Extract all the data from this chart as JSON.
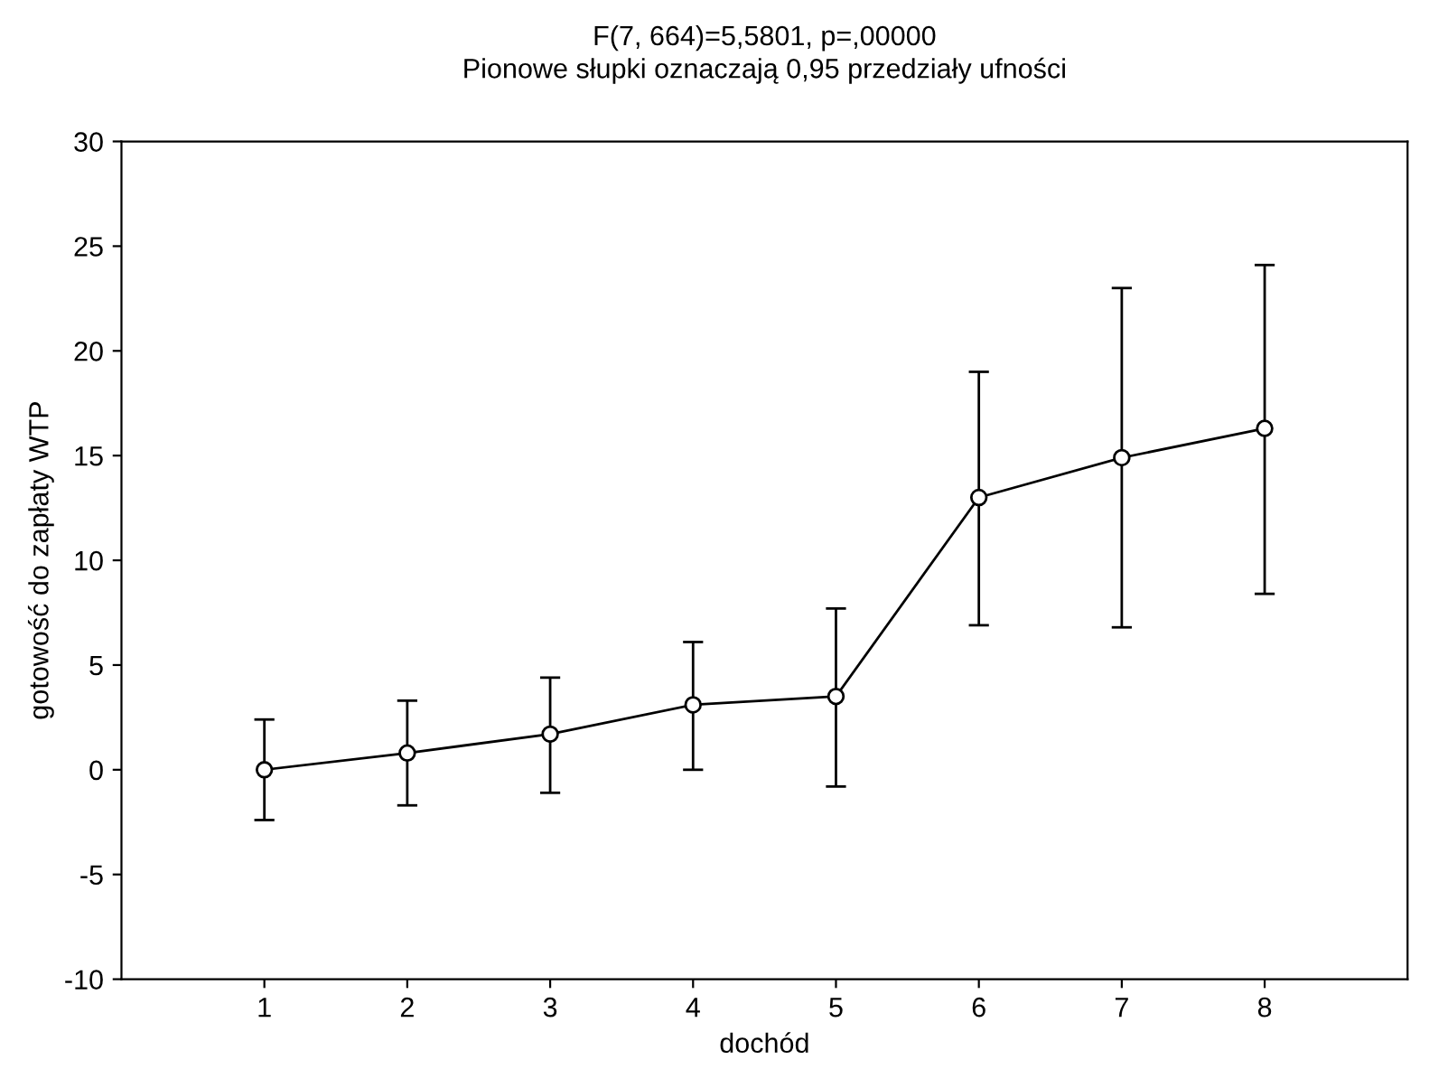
{
  "chart_data": {
    "type": "line",
    "title": "F(7, 664)=5,5801, p=,00000",
    "subtitle": "Pionowe słupki oznaczają 0,95 przedziały ufności",
    "xlabel": "dochód",
    "ylabel": "gotowość do zapłaty WTP",
    "categories": [
      "1",
      "2",
      "3",
      "4",
      "5",
      "6",
      "7",
      "8"
    ],
    "series": [
      {
        "color": "#000000",
        "values": [
          0.0,
          0.8,
          1.7,
          3.1,
          3.5,
          13.0,
          14.9,
          16.3
        ],
        "errors": [
          [
            -2.4,
            2.4
          ],
          [
            -1.7,
            3.3
          ],
          [
            -1.1,
            4.4
          ],
          [
            0.0,
            6.1
          ],
          [
            -0.8,
            7.7
          ],
          [
            6.9,
            19.0
          ],
          [
            6.8,
            23.0
          ],
          [
            8.4,
            24.1
          ]
        ]
      }
    ],
    "ylim": [
      -10,
      30
    ],
    "yticks": [
      -10,
      -5,
      0,
      5,
      10,
      15,
      20,
      25,
      30
    ],
    "marker": "circle",
    "line_style": "solid",
    "grid": false,
    "legend": false
  }
}
